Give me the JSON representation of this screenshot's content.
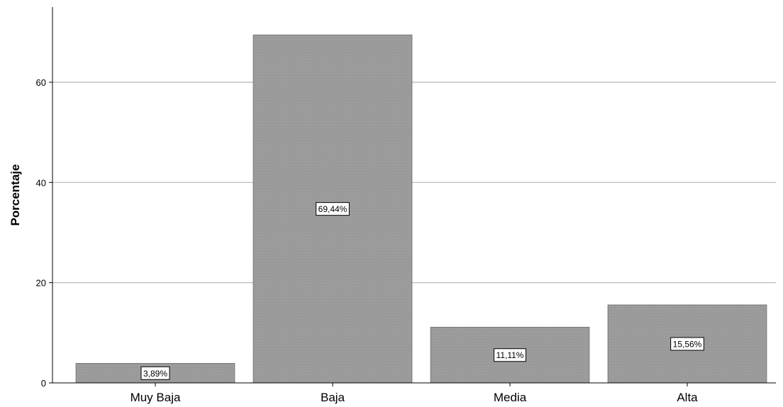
{
  "chart_data": {
    "type": "bar",
    "categories": [
      "Muy Baja",
      "Baja",
      "Media",
      "Alta"
    ],
    "values": [
      3.89,
      69.44,
      11.11,
      15.56
    ],
    "data_labels": [
      "3,89%",
      "69,44%",
      "11,11%",
      "15,56%"
    ],
    "title": "",
    "xlabel": "",
    "ylabel": "Porcentaje",
    "ylim": [
      0,
      75
    ],
    "yticks": [
      0,
      20,
      40,
      60
    ],
    "ytick_labels": [
      "0",
      "20",
      "40",
      "60"
    ],
    "grid": true,
    "legend": "none",
    "colors": {
      "bar": "#9b9b9b",
      "bar_edge": "#7a7a7a",
      "grid": "#b5b5b5",
      "axis": "#000000",
      "label_box": "#ffffff"
    }
  }
}
